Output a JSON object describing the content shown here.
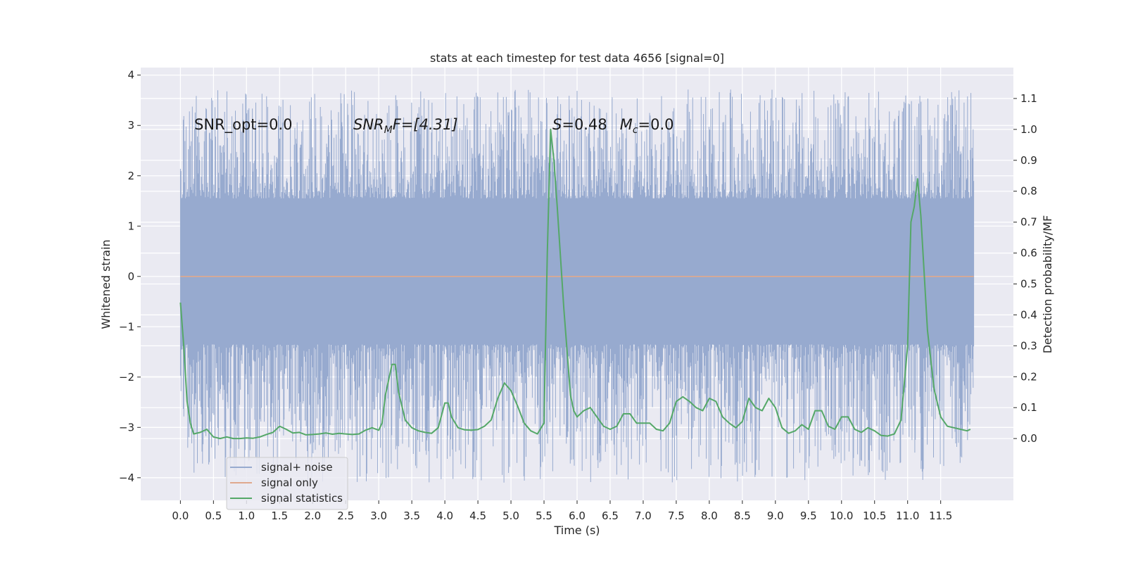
{
  "chart_data": {
    "type": "line",
    "title": "stats at each timestep for test data 4656 [signal=0]",
    "xlabel": "Time (s)",
    "ylabel": "Whitened strain",
    "y2label": "Detection probability/MF",
    "xlim": [
      -0.6,
      12.6
    ],
    "ylim": [
      -4.45,
      4.15
    ],
    "y2lim": [
      -0.2,
      1.2
    ],
    "x_ticks": [
      "0.0",
      "0.5",
      "1.0",
      "1.5",
      "2.0",
      "2.5",
      "3.0",
      "3.5",
      "4.0",
      "4.5",
      "5.0",
      "5.5",
      "6.0",
      "6.5",
      "7.0",
      "7.5",
      "8.0",
      "8.5",
      "9.0",
      "9.5",
      "10.0",
      "10.5",
      "11.0",
      "11.5"
    ],
    "y_ticks": [
      "4",
      "3",
      "2",
      "1",
      "0",
      "−1",
      "−2",
      "−3",
      "−4"
    ],
    "y2_ticks": [
      "1.1",
      "1.0",
      "0.9",
      "0.8",
      "0.7",
      "0.6",
      "0.5",
      "0.4",
      "0.3",
      "0.2",
      "0.1",
      "0.0"
    ],
    "grid": true,
    "legend_position": "lower-left",
    "annotations": {
      "snr_opt": "SNR_opt=0.0",
      "snr_mf_base": "SNR",
      "snr_mf_sub": "M",
      "snr_mf_rest": "F=[4.31]",
      "s_label": "S",
      "s_value": "=0.48",
      "mc_label": "M",
      "mc_sub": "c",
      "mc_value": "=0.0"
    },
    "series": [
      {
        "name": "signal+ noise",
        "color": "#97aacf",
        "x_range": [
          0.0,
          12.0
        ],
        "core_band": [
          -1.35,
          1.55
        ],
        "envelope": [
          -4.1,
          3.72
        ],
        "description_values": "dense noise"
      },
      {
        "name": "signal only",
        "color": "#e0a98e",
        "x": [
          0.0,
          12.0
        ],
        "y": [
          0.0,
          0.0
        ]
      },
      {
        "name": "signal statistics",
        "color": "#55a868",
        "axis": "right",
        "x": [
          0.0,
          0.05,
          0.1,
          0.15,
          0.2,
          0.3,
          0.4,
          0.5,
          0.6,
          0.7,
          0.8,
          0.9,
          1.0,
          1.1,
          1.2,
          1.3,
          1.4,
          1.5,
          1.6,
          1.7,
          1.8,
          1.9,
          2.0,
          2.1,
          2.2,
          2.3,
          2.4,
          2.5,
          2.6,
          2.7,
          2.8,
          2.9,
          3.0,
          3.05,
          3.1,
          3.2,
          3.25,
          3.3,
          3.4,
          3.5,
          3.6,
          3.7,
          3.8,
          3.9,
          4.0,
          4.05,
          4.1,
          4.2,
          4.3,
          4.4,
          4.5,
          4.6,
          4.7,
          4.8,
          4.9,
          5.0,
          5.1,
          5.2,
          5.3,
          5.4,
          5.5,
          5.55,
          5.6,
          5.65,
          5.7,
          5.8,
          5.9,
          5.95,
          6.0,
          6.1,
          6.2,
          6.3,
          6.4,
          6.5,
          6.6,
          6.7,
          6.8,
          6.9,
          7.0,
          7.1,
          7.2,
          7.3,
          7.4,
          7.5,
          7.6,
          7.7,
          7.8,
          7.9,
          8.0,
          8.1,
          8.2,
          8.3,
          8.4,
          8.5,
          8.6,
          8.7,
          8.8,
          8.9,
          9.0,
          9.1,
          9.2,
          9.3,
          9.4,
          9.5,
          9.6,
          9.7,
          9.8,
          9.9,
          10.0,
          10.1,
          10.2,
          10.3,
          10.4,
          10.5,
          10.6,
          10.7,
          10.8,
          10.9,
          11.0,
          11.05,
          11.1,
          11.15,
          11.2,
          11.3,
          11.4,
          11.5,
          11.6,
          11.7,
          11.8,
          11.9,
          11.95
        ],
        "y": [
          0.44,
          0.3,
          0.12,
          0.05,
          0.015,
          0.02,
          0.03,
          0.005,
          0.0,
          0.005,
          0.0,
          0.0,
          0.002,
          0.001,
          0.005,
          0.013,
          0.02,
          0.04,
          0.03,
          0.018,
          0.02,
          0.012,
          0.013,
          0.015,
          0.018,
          0.014,
          0.017,
          0.015,
          0.013,
          0.015,
          0.027,
          0.035,
          0.027,
          0.05,
          0.14,
          0.24,
          0.24,
          0.15,
          0.06,
          0.035,
          0.025,
          0.02,
          0.017,
          0.035,
          0.115,
          0.115,
          0.07,
          0.035,
          0.028,
          0.027,
          0.029,
          0.04,
          0.06,
          0.13,
          0.18,
          0.155,
          0.105,
          0.05,
          0.025,
          0.015,
          0.05,
          0.6,
          1.0,
          0.9,
          0.75,
          0.42,
          0.14,
          0.09,
          0.07,
          0.09,
          0.1,
          0.07,
          0.04,
          0.03,
          0.04,
          0.08,
          0.08,
          0.05,
          0.05,
          0.05,
          0.03,
          0.025,
          0.05,
          0.12,
          0.135,
          0.12,
          0.1,
          0.09,
          0.13,
          0.12,
          0.07,
          0.05,
          0.035,
          0.055,
          0.13,
          0.1,
          0.09,
          0.13,
          0.1,
          0.035,
          0.017,
          0.025,
          0.045,
          0.03,
          0.09,
          0.09,
          0.04,
          0.03,
          0.07,
          0.07,
          0.03,
          0.02,
          0.035,
          0.025,
          0.01,
          0.008,
          0.015,
          0.06,
          0.3,
          0.7,
          0.75,
          0.84,
          0.72,
          0.35,
          0.16,
          0.07,
          0.04,
          0.035,
          0.03,
          0.025,
          0.03
        ]
      }
    ]
  }
}
